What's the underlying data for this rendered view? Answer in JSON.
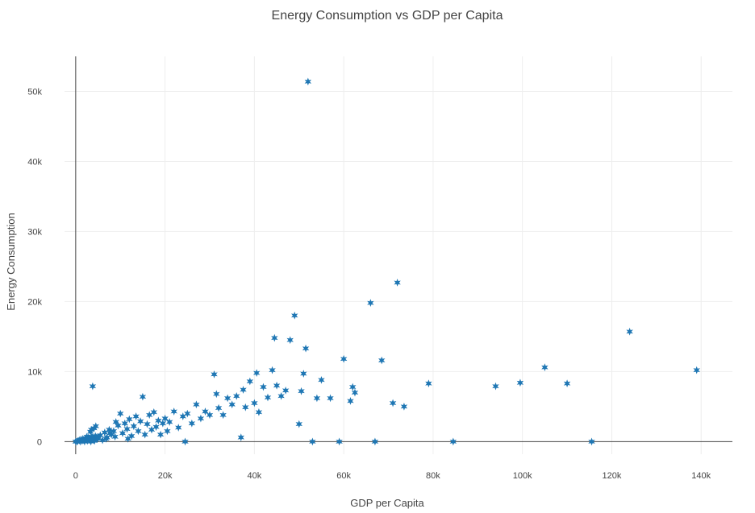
{
  "chart_data": {
    "type": "scatter",
    "title": "Energy Consumption vs GDP per Capita",
    "xlabel": "GDP per Capita",
    "ylabel": "Energy Consumption",
    "xlim": [
      -2500,
      147000
    ],
    "ylim": [
      -1800,
      55000
    ],
    "x_ticks": [
      0,
      20000,
      40000,
      60000,
      80000,
      100000,
      120000,
      140000
    ],
    "x_tick_labels": [
      "0",
      "20k",
      "40k",
      "60k",
      "80k",
      "100k",
      "120k",
      "140k"
    ],
    "y_ticks": [
      0,
      10000,
      20000,
      30000,
      40000,
      50000
    ],
    "y_tick_labels": [
      "0",
      "10k",
      "20k",
      "30k",
      "40k",
      "50k"
    ],
    "grid": true,
    "marker": "star",
    "color": "#1f77b4",
    "points": [
      [
        0,
        0
      ],
      [
        300,
        0
      ],
      [
        500,
        100
      ],
      [
        800,
        200
      ],
      [
        1000,
        0
      ],
      [
        1200,
        300
      ],
      [
        1400,
        100
      ],
      [
        1600,
        400
      ],
      [
        1800,
        200
      ],
      [
        2000,
        0
      ],
      [
        2200,
        500
      ],
      [
        2400,
        300
      ],
      [
        2600,
        100
      ],
      [
        2800,
        600
      ],
      [
        3000,
        400
      ],
      [
        3200,
        200
      ],
      [
        3400,
        0
      ],
      [
        3600,
        700
      ],
      [
        3800,
        500
      ],
      [
        4000,
        300
      ],
      [
        4200,
        100
      ],
      [
        4400,
        800
      ],
      [
        4600,
        600
      ],
      [
        4800,
        400
      ],
      [
        1500,
        200
      ],
      [
        2500,
        700
      ],
      [
        3500,
        1700
      ],
      [
        4500,
        2200
      ],
      [
        3300,
        1400
      ],
      [
        4100,
        1900
      ],
      [
        5000,
        500
      ],
      [
        5500,
        900
      ],
      [
        6000,
        200
      ],
      [
        6500,
        1300
      ],
      [
        7000,
        600
      ],
      [
        7500,
        1700
      ],
      [
        8000,
        1000
      ],
      [
        8500,
        1500
      ],
      [
        9000,
        2800
      ],
      [
        9500,
        2300
      ],
      [
        10000,
        4000
      ],
      [
        10500,
        1200
      ],
      [
        11000,
        2600
      ],
      [
        11500,
        1800
      ],
      [
        12000,
        3200
      ],
      [
        12500,
        800
      ],
      [
        13000,
        2200
      ],
      [
        13500,
        3600
      ],
      [
        14000,
        1500
      ],
      [
        14500,
        2900
      ],
      [
        15000,
        6400
      ],
      [
        15500,
        1000
      ],
      [
        16000,
        2500
      ],
      [
        16500,
        3800
      ],
      [
        17000,
        1700
      ],
      [
        17500,
        4200
      ],
      [
        18000,
        2100
      ],
      [
        18500,
        3000
      ],
      [
        19000,
        1000
      ],
      [
        19500,
        2600
      ],
      [
        20000,
        3300
      ],
      [
        20500,
        1500
      ],
      [
        21000,
        2800
      ],
      [
        22000,
        4300
      ],
      [
        23000,
        2000
      ],
      [
        24000,
        3600
      ],
      [
        24500,
        0
      ],
      [
        25000,
        4000
      ],
      [
        26000,
        2600
      ],
      [
        27000,
        5300
      ],
      [
        28000,
        3300
      ],
      [
        29000,
        4300
      ],
      [
        30000,
        3800
      ],
      [
        31000,
        9600
      ],
      [
        31500,
        6800
      ],
      [
        32000,
        4800
      ],
      [
        33000,
        3800
      ],
      [
        34000,
        6200
      ],
      [
        35000,
        5300
      ],
      [
        36000,
        6500
      ],
      [
        37000,
        600
      ],
      [
        37500,
        7400
      ],
      [
        38000,
        4900
      ],
      [
        39000,
        8600
      ],
      [
        40000,
        5500
      ],
      [
        40500,
        9800
      ],
      [
        41000,
        4200
      ],
      [
        42000,
        7800
      ],
      [
        43000,
        6300
      ],
      [
        44000,
        10200
      ],
      [
        44500,
        14800
      ],
      [
        45000,
        8000
      ],
      [
        46000,
        6500
      ],
      [
        47000,
        7300
      ],
      [
        48000,
        14500
      ],
      [
        49000,
        18000
      ],
      [
        50000,
        2500
      ],
      [
        50500,
        7200
      ],
      [
        51000,
        9700
      ],
      [
        51500,
        13300
      ],
      [
        52000,
        51400
      ],
      [
        53000,
        0
      ],
      [
        54000,
        6200
      ],
      [
        55000,
        8800
      ],
      [
        57000,
        6200
      ],
      [
        59000,
        0
      ],
      [
        60000,
        11800
      ],
      [
        61500,
        5800
      ],
      [
        62000,
        7800
      ],
      [
        62500,
        7000
      ],
      [
        66000,
        19800
      ],
      [
        67000,
        0
      ],
      [
        68500,
        11600
      ],
      [
        71000,
        5500
      ],
      [
        72000,
        22700
      ],
      [
        73500,
        5000
      ],
      [
        79000,
        8300
      ],
      [
        84500,
        0
      ],
      [
        94000,
        7900
      ],
      [
        99500,
        8400
      ],
      [
        105000,
        10600
      ],
      [
        110000,
        8300
      ],
      [
        115500,
        0
      ],
      [
        124000,
        15700
      ],
      [
        139000,
        10200
      ],
      [
        3800,
        7900
      ],
      [
        6800,
        400
      ],
      [
        7700,
        1200
      ],
      [
        8800,
        700
      ],
      [
        11700,
        400
      ]
    ]
  }
}
